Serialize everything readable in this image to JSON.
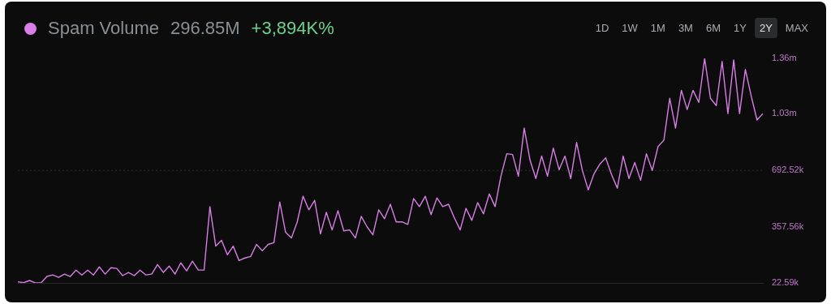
{
  "chart_data": {
    "type": "line",
    "subtitle": "296.85M",
    "legend": "top left",
    "grid": false,
    "marker": "none",
    "line_style": "solid",
    "tick_labels": "y",
    "annotations": [
      "+3,894K%",
      "1D",
      "1W",
      "1M",
      "3M",
      "6M",
      "1Y",
      "2Y",
      "MAX"
    ],
    "categories": [
      null,
      null,
      null,
      null,
      null,
      null,
      null,
      null,
      null,
      null,
      null,
      null,
      null,
      null,
      null,
      null,
      null,
      null,
      null,
      null,
      null,
      null,
      null,
      null,
      null,
      null,
      null,
      null,
      null,
      null,
      null,
      null,
      null,
      null,
      null,
      null,
      null,
      null,
      null,
      null,
      null,
      null,
      null,
      null,
      null,
      null,
      null,
      null,
      null,
      null,
      null,
      null,
      null,
      null,
      null,
      null,
      null,
      null,
      null,
      null,
      null,
      null,
      null,
      null,
      null,
      null,
      null,
      null,
      null,
      null,
      null,
      null,
      null,
      null,
      null,
      null,
      null,
      null,
      null,
      null,
      null,
      null,
      null,
      null,
      null,
      null,
      null,
      null,
      null,
      null,
      null,
      null,
      null,
      null,
      null,
      null,
      null,
      null,
      null,
      null,
      null,
      null,
      null,
      null,
      null,
      null,
      null,
      null,
      null,
      null,
      null,
      null,
      null,
      null,
      null,
      null,
      null,
      null,
      null,
      null,
      null,
      null,
      null,
      null,
      null,
      null,
      null,
      null,
      null
    ],
    "ylim": [
      22590,
      1360000
    ],
    "yticks": [
      {
        "value": 22590,
        "label": "22.59k"
      },
      {
        "value": 357560,
        "label": "357.56k"
      },
      {
        "value": 692520,
        "label": "692.52k"
      },
      {
        "value": 1030000,
        "label": "1.03m"
      },
      {
        "value": 1360000,
        "label": "1.36m"
      }
    ],
    "ref_lines": [
      {
        "axis": "y",
        "value": 692520,
        "color": "#2e2e2e",
        "line_style": "dotted"
      }
    ],
    "series": [
      {
        "name": "Spam Volume",
        "color": "#d87ee6",
        "values": [
          29000,
          24000,
          37000,
          23000,
          24000,
          61000,
          70000,
          56000,
          75000,
          61000,
          99000,
          70000,
          99000,
          70000,
          118000,
          75000,
          113000,
          109000,
          66000,
          85000,
          66000,
          99000,
          70000,
          75000,
          132000,
          85000,
          123000,
          75000,
          142000,
          94000,
          152000,
          99000,
          99000,
          477000,
          242000,
          276000,
          190000,
          242000,
          156000,
          171000,
          180000,
          252000,
          214000,
          252000,
          262000,
          505000,
          324000,
          290000,
          386000,
          539000,
          458000,
          515000,
          314000,
          443000,
          338000,
          453000,
          333000,
          338000,
          290000,
          419000,
          357000,
          309000,
          458000,
          405000,
          491000,
          386000,
          386000,
          371000,
          525000,
          477000,
          539000,
          429000,
          529000,
          477000,
          491000,
          410000,
          338000,
          467000,
          395000,
          501000,
          434000,
          553000,
          477000,
          658000,
          792000,
          787000,
          658000,
          945000,
          754000,
          644000,
          778000,
          658000,
          826000,
          697000,
          778000,
          644000,
          859000,
          692000,
          577000,
          673000,
          730000,
          768000,
          668000,
          587000,
          778000,
          644000,
          740000,
          634000,
          792000,
          692000,
          835000,
          873000,
          1122000,
          945000,
          1170000,
          1055000,
          1170000,
          1098000,
          1360000,
          1122000,
          1079000,
          1342000,
          1031000,
          1351000,
          1031000,
          1294000,
          1136000,
          993000,
          1031000
        ]
      }
    ]
  }
}
